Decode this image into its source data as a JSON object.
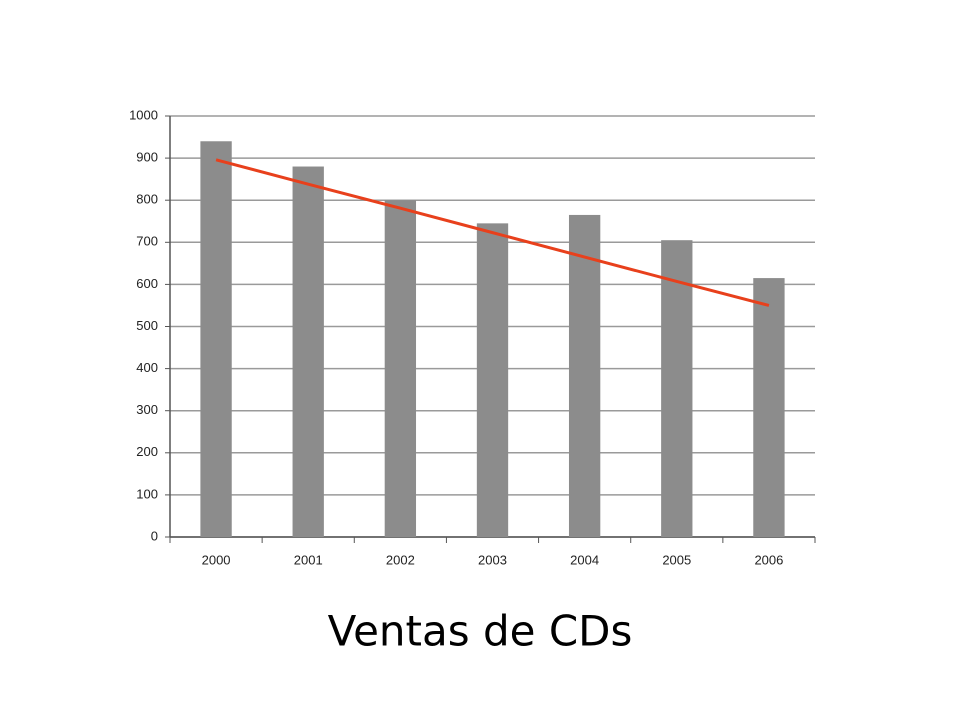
{
  "chart_data": {
    "type": "bar",
    "title": "Ventas de CDs",
    "categories": [
      "2000",
      "2001",
      "2002",
      "2003",
      "2004",
      "2005",
      "2006"
    ],
    "series": [
      {
        "type": "bar",
        "color": "#8c8c8c",
        "values": [
          940,
          880,
          800,
          745,
          765,
          705,
          615
        ]
      },
      {
        "type": "line",
        "color": "#e8401c",
        "values": [
          896,
          838,
          781,
          723,
          665,
          607,
          550
        ]
      }
    ],
    "ylim": [
      0,
      1000
    ],
    "yticks": [
      0,
      100,
      200,
      300,
      400,
      500,
      600,
      700,
      800,
      900,
      1000
    ],
    "grid": true
  }
}
